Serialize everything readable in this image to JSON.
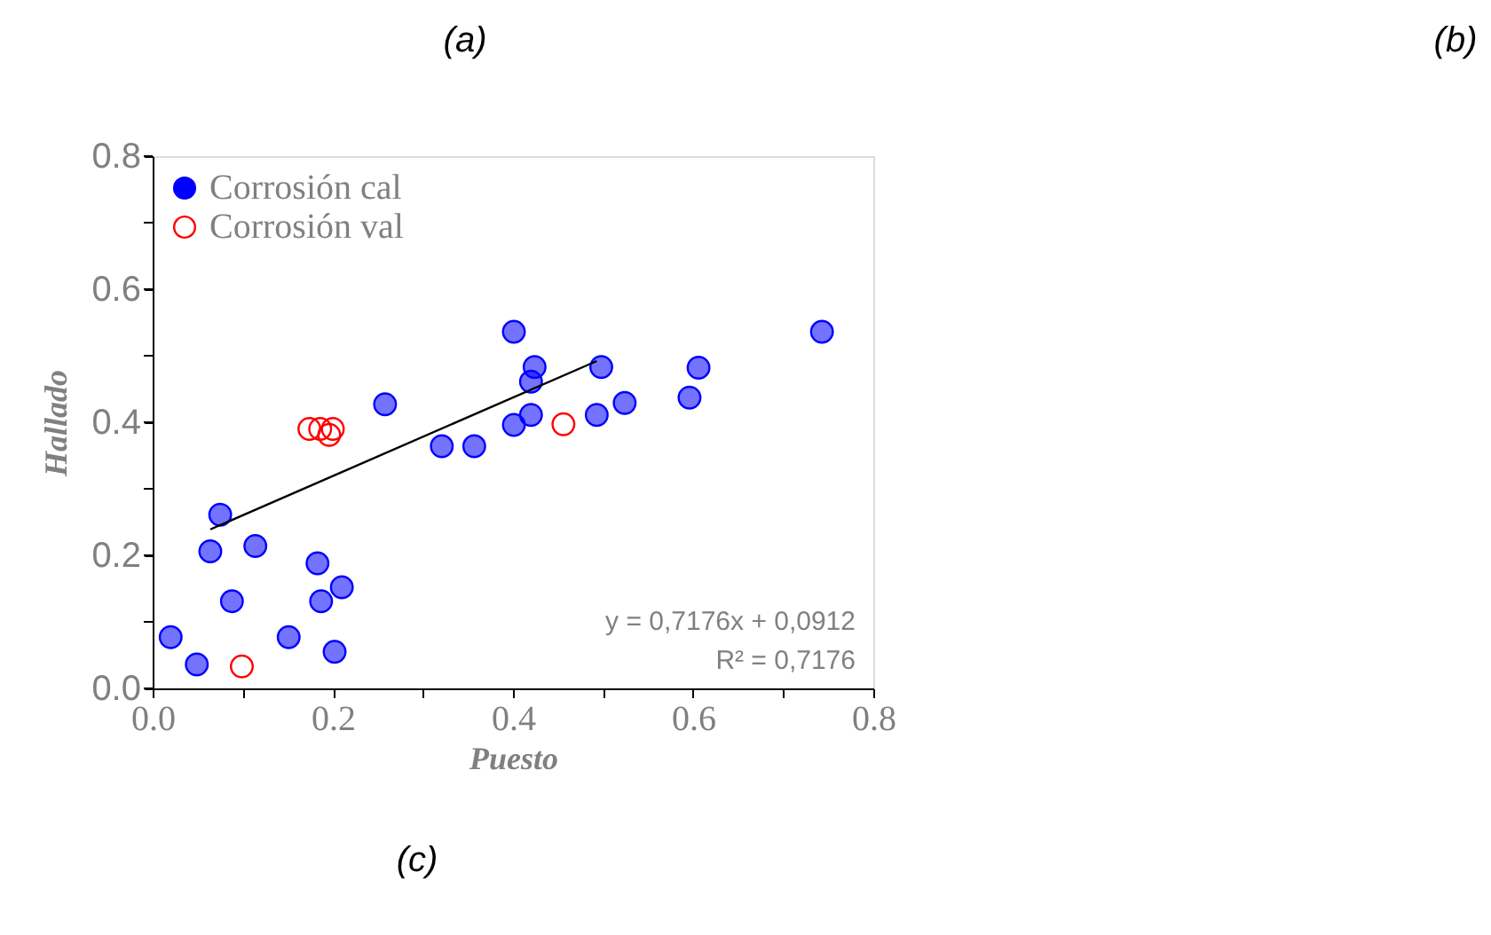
{
  "chart_data": {
    "type": "scatter",
    "xlabel": "Puesto",
    "ylabel": "Hallado",
    "annotations": [
      "(a)",
      "(b)",
      "(c)",
      "y = 0,7176x + 0,0912",
      "R² = 0,7176"
    ],
    "xlim": [
      0,
      0.8
    ],
    "ylim": [
      0,
      0.8
    ],
    "xticks": [
      {
        "value": 0,
        "label": "0.0"
      },
      {
        "value": 0.1,
        "label": null
      },
      0.2,
      {
        "value": 0.3,
        "label": null
      },
      0.4,
      {
        "value": 0.5,
        "label": null
      },
      0.6,
      {
        "value": 0.7,
        "label": null
      },
      0.8
    ],
    "yticks": [
      {
        "value": 0,
        "label": "0.0"
      },
      {
        "value": 0.1,
        "label": null
      },
      0.2,
      {
        "value": 0.3,
        "label": null
      },
      0.4,
      {
        "value": 0.5,
        "label": null
      },
      0.6,
      {
        "value": 0.7,
        "label": null
      },
      0.8
    ],
    "grid": false,
    "legend": "top left",
    "marker": "circle",
    "series": [
      {
        "name": "Corrosión cal",
        "color": "#0000ff",
        "x": [
          0.02,
          0.049,
          0.064,
          0.075,
          0.088,
          0.114,
          0.151,
          0.183,
          0.187,
          0.21,
          0.202,
          0.258,
          0.321,
          0.357,
          0.401,
          0.401,
          0.42,
          0.42,
          0.424,
          0.493,
          0.498,
          0.524,
          0.596,
          0.606,
          0.743
        ],
        "values": [
          0.077,
          0.036,
          0.206,
          0.261,
          0.131,
          0.214,
          0.077,
          0.188,
          0.131,
          0.152,
          0.055,
          0.427,
          0.364,
          0.364,
          0.536,
          0.396,
          0.411,
          0.461,
          0.483,
          0.411,
          0.483,
          0.429,
          0.437,
          0.482,
          0.536
        ]
      },
      {
        "name": "Corrosión val",
        "color": "#ff0000",
        "x": [
          0.099,
          0.174,
          0.186,
          0.196,
          0.2,
          0.456
        ],
        "values": [
          0.033,
          0.39,
          0.39,
          0.381,
          0.39,
          0.397
        ]
      },
      {
        "type": "line",
        "color": "#000000",
        "marker": "none",
        "x": [
          0.064,
          0.493
        ],
        "values": [
          0.239,
          0.492
        ]
      }
    ]
  }
}
